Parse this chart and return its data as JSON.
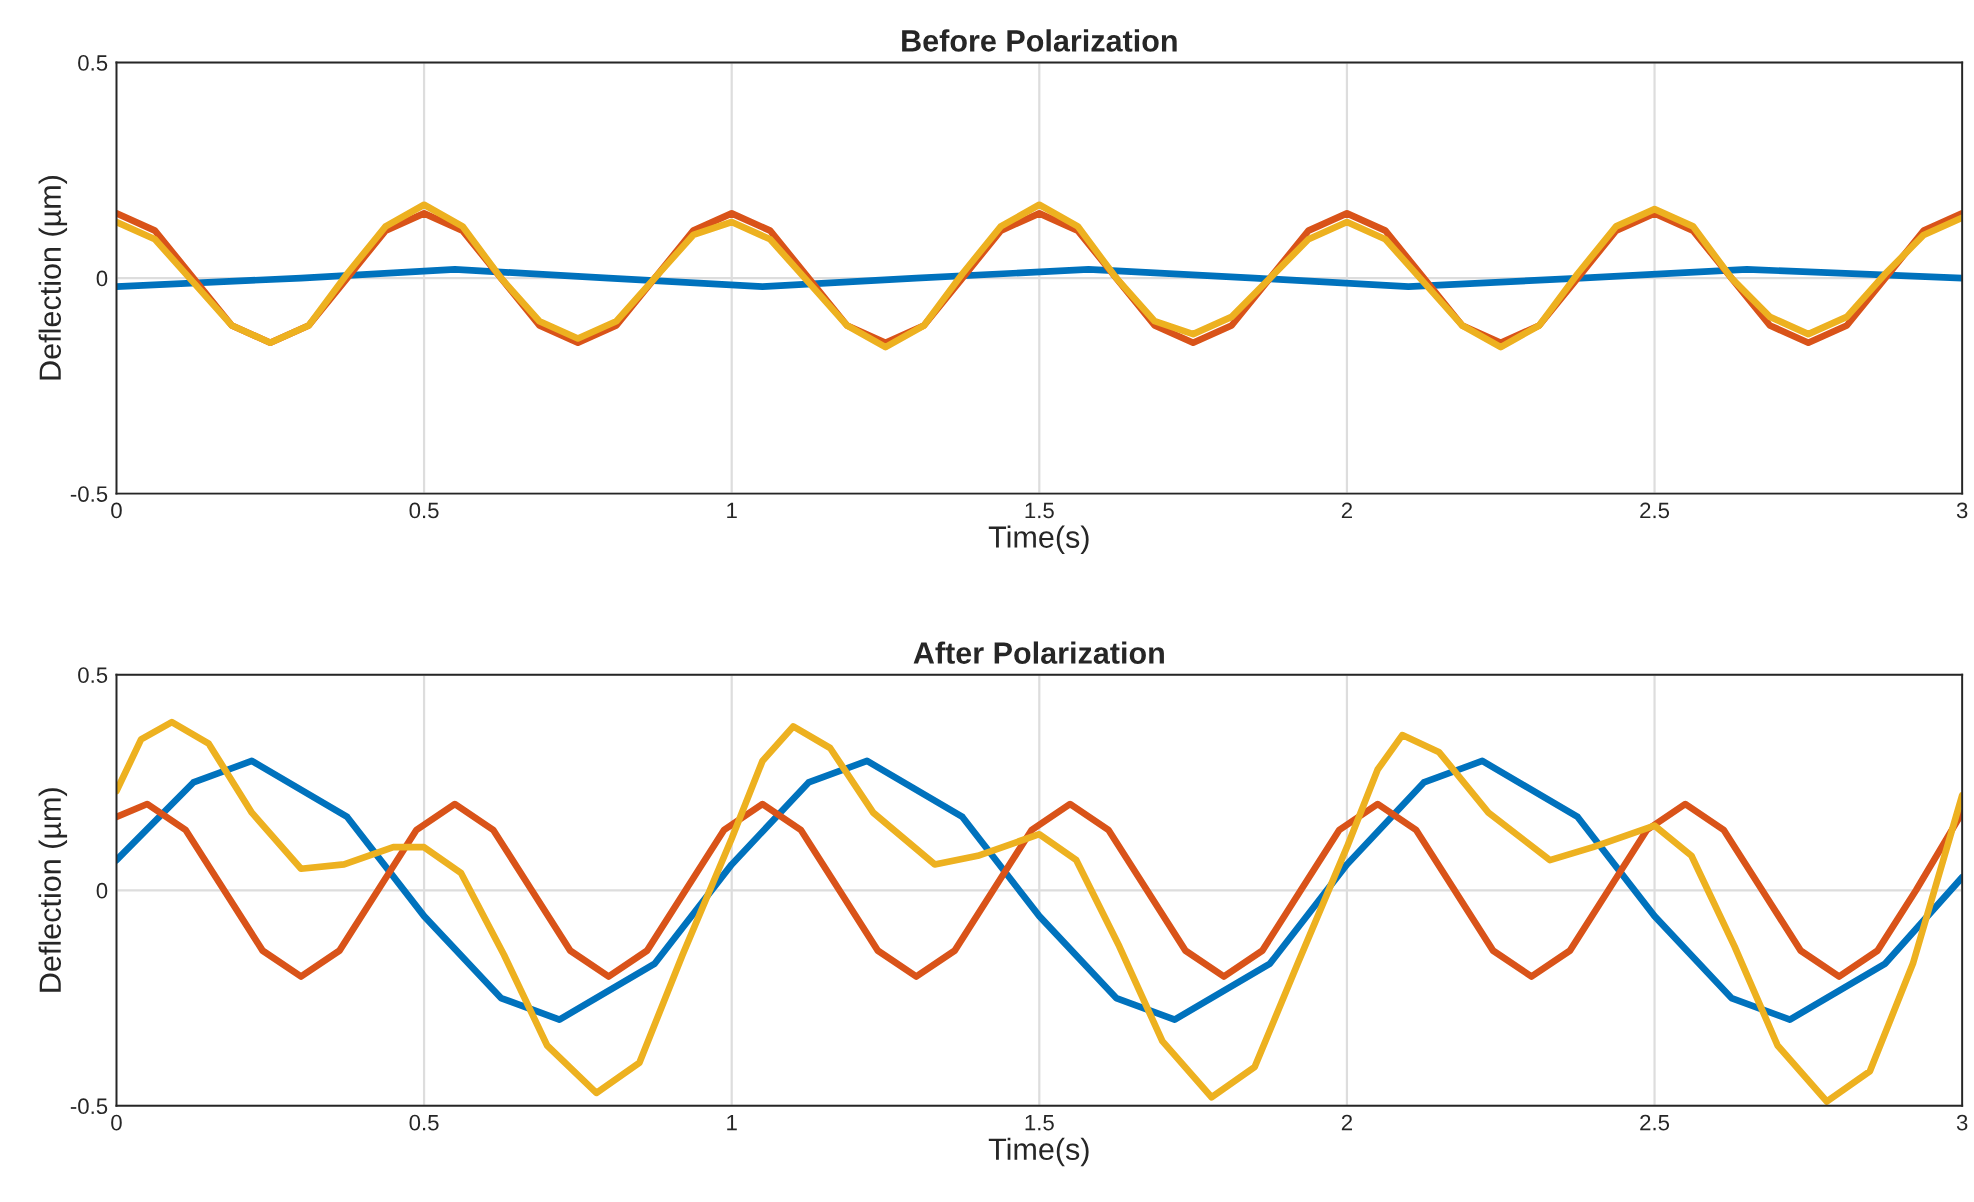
{
  "chart_data": [
    {
      "type": "line",
      "title": "Before Polarization",
      "xlabel": "Time(s)",
      "ylabel": "Deflection (µm)",
      "xlim": [
        0,
        3
      ],
      "ylim": [
        -0.5,
        0.5
      ],
      "xticks": [
        0,
        0.5,
        1,
        1.5,
        2,
        2.5,
        3
      ],
      "yticks": [
        -0.5,
        0,
        0.5
      ],
      "grid": true,
      "x": [
        0,
        0.0625,
        0.125,
        0.1875,
        0.25,
        0.3125,
        0.375,
        0.4375,
        0.5,
        0.5625,
        0.625,
        0.6875,
        0.75,
        0.8125,
        0.875,
        0.9375,
        1,
        1.0625,
        1.125,
        1.1875,
        1.25,
        1.3125,
        1.375,
        1.4375,
        1.5,
        1.5625,
        1.625,
        1.6875,
        1.75,
        1.8125,
        1.875,
        1.9375,
        2,
        2.0625,
        2.125,
        2.1875,
        2.25,
        2.3125,
        2.375,
        2.4375,
        2.5,
        2.5625,
        2.625,
        2.6875,
        2.75,
        2.8125,
        2.875,
        2.9375,
        3
      ],
      "series": [
        {
          "color": "#0072bd",
          "x": [
            0,
            0.3,
            0.55,
            0.8,
            1.05,
            1.3,
            1.58,
            1.85,
            2.1,
            2.38,
            2.65,
            3
          ],
          "values": [
            -0.02,
            0,
            0.02,
            0,
            -0.02,
            0,
            0.02,
            0,
            -0.02,
            0,
            0.02,
            0
          ]
        },
        {
          "color": "#d95319",
          "values": [
            0.15,
            0.11,
            0,
            -0.11,
            -0.15,
            -0.11,
            0,
            0.11,
            0.15,
            0.11,
            0,
            -0.11,
            -0.15,
            -0.11,
            0,
            0.11,
            0.15,
            0.11,
            0,
            -0.11,
            -0.15,
            -0.11,
            0,
            0.11,
            0.15,
            0.11,
            0,
            -0.11,
            -0.15,
            -0.11,
            0,
            0.11,
            0.15,
            0.11,
            0,
            -0.11,
            -0.15,
            -0.11,
            0,
            0.11,
            0.15,
            0.11,
            0,
            -0.11,
            -0.15,
            -0.11,
            0,
            0.11,
            0.15
          ]
        },
        {
          "color": "#edb120",
          "values": [
            0.13,
            0.09,
            -0.01,
            -0.11,
            -0.15,
            -0.11,
            0.01,
            0.12,
            0.17,
            0.12,
            0,
            -0.1,
            -0.14,
            -0.1,
            0,
            0.1,
            0.13,
            0.09,
            -0.01,
            -0.11,
            -0.16,
            -0.11,
            0.01,
            0.12,
            0.17,
            0.12,
            0,
            -0.1,
            -0.13,
            -0.09,
            0,
            0.09,
            0.13,
            0.09,
            -0.01,
            -0.11,
            -0.16,
            -0.11,
            0.01,
            0.12,
            0.16,
            0.12,
            0,
            -0.09,
            -0.13,
            -0.09,
            0.01,
            0.1,
            0.14
          ]
        }
      ]
    },
    {
      "type": "line",
      "title": "After Polarization",
      "xlabel": "Time(s)",
      "ylabel": "Deflection (µm)",
      "xlim": [
        0,
        3
      ],
      "ylim": [
        -0.5,
        0.5
      ],
      "xticks": [
        0,
        0.5,
        1,
        1.5,
        2,
        2.5,
        3
      ],
      "yticks": [
        -0.5,
        0,
        0.5
      ],
      "grid": true,
      "series": [
        {
          "color": "#0072bd",
          "x": [
            0,
            0.125,
            0.22,
            0.375,
            0.5,
            0.625,
            0.72,
            0.875,
            1,
            1.125,
            1.22,
            1.375,
            1.5,
            1.625,
            1.72,
            1.875,
            2,
            2.125,
            2.22,
            2.375,
            2.5,
            2.625,
            2.72,
            2.875,
            3
          ],
          "values": [
            0.07,
            0.25,
            0.3,
            0.17,
            -0.06,
            -0.25,
            -0.3,
            -0.17,
            0.06,
            0.25,
            0.3,
            0.17,
            -0.06,
            -0.25,
            -0.3,
            -0.17,
            0.06,
            0.25,
            0.3,
            0.17,
            -0.06,
            -0.25,
            -0.3,
            -0.17,
            0.03
          ]
        },
        {
          "color": "#d95319",
          "x": [
            0,
            0.05,
            0.1125,
            0.175,
            0.2375,
            0.3,
            0.3625,
            0.425,
            0.4875,
            0.55,
            0.6125,
            0.675,
            0.7375,
            0.8,
            0.8625,
            0.925,
            0.9875,
            1.05,
            1.1125,
            1.175,
            1.2375,
            1.3,
            1.3625,
            1.425,
            1.4875,
            1.55,
            1.6125,
            1.675,
            1.7375,
            1.8,
            1.8625,
            1.925,
            1.9875,
            2.05,
            2.1125,
            2.175,
            2.2375,
            2.3,
            2.3625,
            2.425,
            2.4875,
            2.55,
            2.6125,
            2.675,
            2.7375,
            2.8,
            2.8625,
            2.925,
            3
          ],
          "values": [
            0.17,
            0.2,
            0.14,
            0,
            -0.14,
            -0.2,
            -0.14,
            0,
            0.14,
            0.2,
            0.14,
            0,
            -0.14,
            -0.2,
            -0.14,
            0,
            0.14,
            0.2,
            0.14,
            0,
            -0.14,
            -0.2,
            -0.14,
            0,
            0.14,
            0.2,
            0.14,
            0,
            -0.14,
            -0.2,
            -0.14,
            0,
            0.14,
            0.2,
            0.14,
            0,
            -0.14,
            -0.2,
            -0.14,
            0,
            0.14,
            0.2,
            0.14,
            0,
            -0.14,
            -0.2,
            -0.14,
            0,
            0.18
          ]
        },
        {
          "color": "#edb120",
          "x": [
            0,
            0.04,
            0.09,
            0.15,
            0.22,
            0.3,
            0.37,
            0.45,
            0.5,
            0.56,
            0.63,
            0.7,
            0.78,
            0.85,
            0.92,
            1,
            1.05,
            1.1,
            1.16,
            1.23,
            1.33,
            1.4,
            1.5,
            1.56,
            1.63,
            1.7,
            1.78,
            1.85,
            1.92,
            2,
            2.05,
            2.09,
            2.15,
            2.23,
            2.33,
            2.4,
            2.5,
            2.56,
            2.63,
            2.7,
            2.78,
            2.85,
            2.92,
            3
          ],
          "values": [
            0.23,
            0.35,
            0.39,
            0.34,
            0.18,
            0.05,
            0.06,
            0.1,
            0.1,
            0.04,
            -0.15,
            -0.36,
            -0.47,
            -0.4,
            -0.15,
            0.12,
            0.3,
            0.38,
            0.33,
            0.18,
            0.06,
            0.08,
            0.13,
            0.07,
            -0.13,
            -0.35,
            -0.48,
            -0.41,
            -0.17,
            0.1,
            0.28,
            0.36,
            0.32,
            0.18,
            0.07,
            0.1,
            0.15,
            0.08,
            -0.13,
            -0.36,
            -0.49,
            -0.42,
            -0.17,
            0.22
          ]
        }
      ]
    }
  ]
}
